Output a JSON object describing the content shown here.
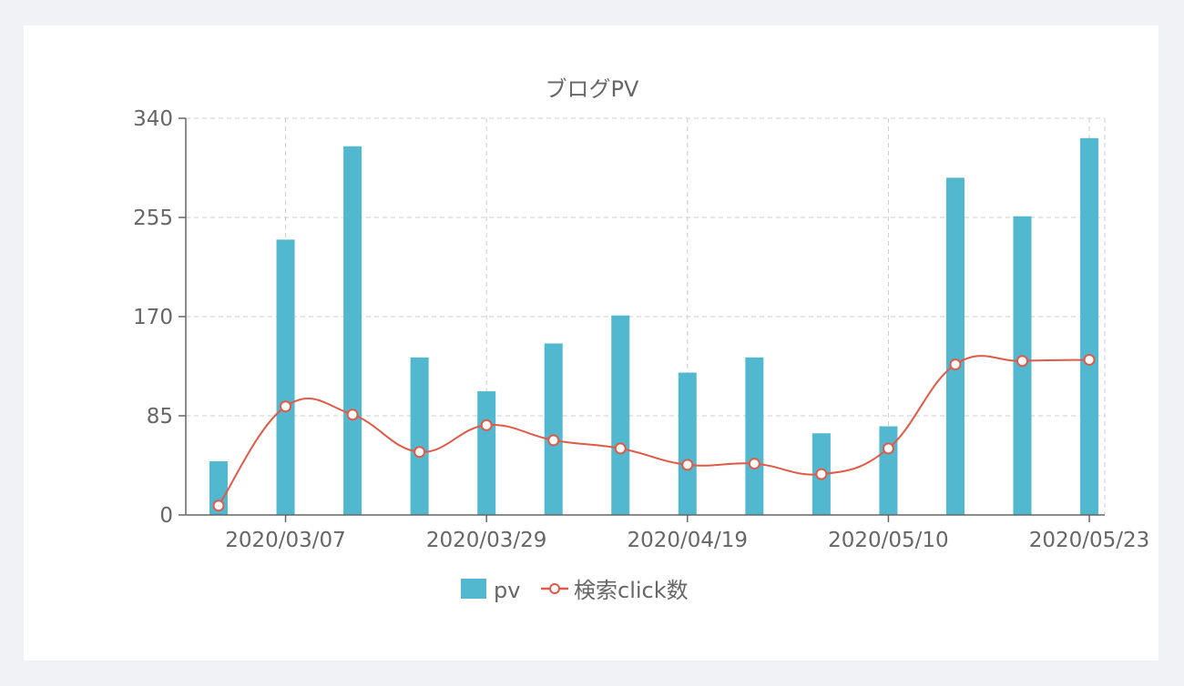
{
  "chart_data": {
    "type": "bar",
    "title": "ブログPV",
    "xlabel": "",
    "ylabel": "",
    "ylim": [
      0,
      340
    ],
    "yticks": [
      "0",
      "85",
      "170",
      "255",
      "340"
    ],
    "x_tick_labels": [
      "2020/03/07",
      "2020/03/29",
      "2020/04/19",
      "2020/05/10",
      "2020/05/23"
    ],
    "x_tick_index": [
      1,
      4,
      7,
      10,
      13
    ],
    "categories": [
      "",
      "2020/03/07",
      "",
      "",
      "2020/03/29",
      "",
      "",
      "2020/04/19",
      "",
      "",
      "2020/05/10",
      "",
      "",
      "2020/05/23"
    ],
    "grid": true,
    "legend_position": "bottom",
    "series": [
      {
        "name": "pv",
        "type": "bar",
        "color": "#52b8d0",
        "values": [
          46,
          236,
          316,
          135,
          106,
          147,
          171,
          122,
          135,
          70,
          76,
          289,
          256,
          323
        ]
      },
      {
        "name": "検索click数",
        "type": "line",
        "smooth": true,
        "color": "#e05a47",
        "values": [
          8,
          93,
          86,
          54,
          77,
          64,
          57,
          43,
          44,
          35,
          57,
          129,
          132,
          133
        ]
      }
    ]
  }
}
